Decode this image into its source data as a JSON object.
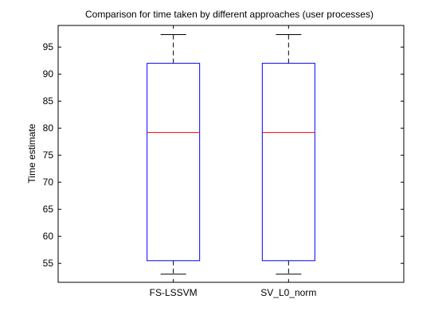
{
  "chart_data": {
    "type": "box",
    "title": "Comparison for time taken by different approaches (user processes)",
    "xlabel": "",
    "ylabel": "Time estimate",
    "ylim": [
      51.5,
      99
    ],
    "yticks": [
      55,
      60,
      65,
      70,
      75,
      80,
      85,
      90,
      95
    ],
    "grid": false,
    "categories": [
      "FS-LSSVM",
      "SV_L0_norm"
    ],
    "boxes": [
      {
        "label": "FS-LSSVM",
        "whisker_low": 53,
        "q1": 55.5,
        "median": 79.2,
        "q3": 92,
        "whisker_high": 97.3
      },
      {
        "label": "SV_L0_norm",
        "whisker_low": 53,
        "q1": 55.5,
        "median": 79.2,
        "q3": 92,
        "whisker_high": 97.3
      }
    ],
    "colors": {
      "box": "#0000ff",
      "median": "#ff0000",
      "whisker": "#000000",
      "axes": "#000000"
    }
  }
}
